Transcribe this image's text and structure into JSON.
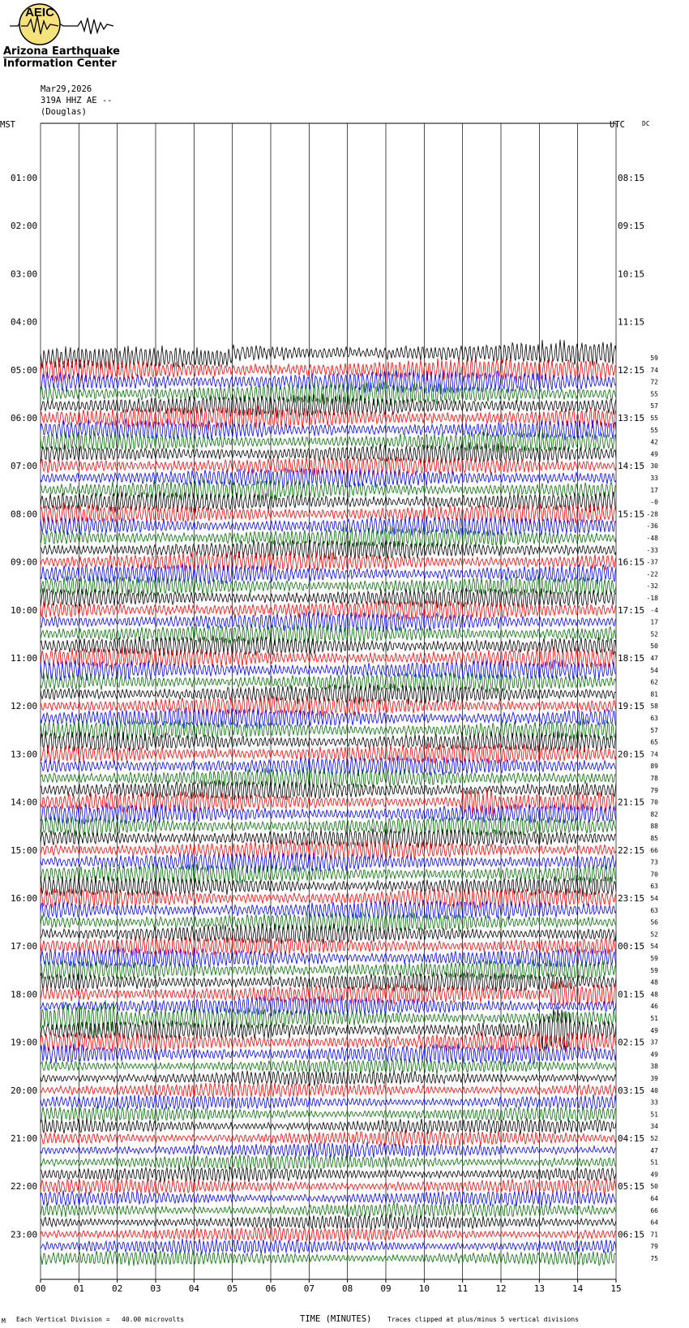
{
  "logo": {
    "badge": "AEIC",
    "line1": "Arizona Earthquake",
    "line2": "Information Center"
  },
  "header": {
    "date": "Mar29,2026",
    "channel": "319A HHZ AE --",
    "site": "(Douglas)"
  },
  "labels": {
    "mst": "MST",
    "utc": "UTC",
    "dc": "DC"
  },
  "footer": {
    "left_mark": "M",
    "vertical_division": "Each Vertical Division =   40.00 microvolts",
    "time_label": "TIME (MINUTES)",
    "clip_note": "Traces clipped at plus/minus 5 vertical divisions"
  },
  "colors": {
    "trace_cycle": [
      "#000000",
      "#ff0000",
      "#0000ff",
      "#007000"
    ],
    "grid": "#000000"
  },
  "chart_data": {
    "type": "line",
    "title": "",
    "xlabel": "TIME (MINUTES)",
    "x_ticks": [
      "00",
      "01",
      "02",
      "03",
      "04",
      "05",
      "06",
      "07",
      "08",
      "09",
      "10",
      "11",
      "12",
      "13",
      "14",
      "15"
    ],
    "left_hour_labels": [
      "01:00",
      "02:00",
      "03:00",
      "04:00",
      "05:00",
      "06:00",
      "07:00",
      "08:00",
      "09:00",
      "10:00",
      "11:00",
      "12:00",
      "13:00",
      "14:00",
      "15:00",
      "16:00",
      "17:00",
      "18:00",
      "19:00",
      "20:00",
      "21:00",
      "22:00",
      "23:00"
    ],
    "right_hour_labels": [
      "08:15",
      "09:15",
      "10:15",
      "11:15",
      "12:15",
      "13:15",
      "14:15",
      "15:15",
      "16:15",
      "17:15",
      "18:15",
      "19:15",
      "20:15",
      "21:15",
      "22:15",
      "23:15",
      "00:15",
      "01:15",
      "02:15",
      "03:15",
      "04:15",
      "05:15",
      "06:15"
    ],
    "dc_offsets": [
      "59",
      "74",
      "72",
      "55",
      "57",
      "55",
      "55",
      "42",
      "49",
      "30",
      "33",
      "17",
      "-0",
      "-28",
      "-36",
      "-48",
      "-33",
      "-37",
      "-22",
      "-32",
      "-18",
      "-4",
      "17",
      "52",
      "50",
      "47",
      "54",
      "62",
      "81",
      "58",
      "63",
      "57",
      "65",
      "74",
      "89",
      "78",
      "79",
      "70",
      "82",
      "88",
      "85",
      "66",
      "73",
      "70",
      "63",
      "54",
      "63",
      "56",
      "52",
      "54",
      "59",
      "59",
      "48",
      "48",
      "46",
      "51",
      "49",
      "37",
      "49",
      "38",
      "39",
      "40",
      "33",
      "51",
      "34",
      "52",
      "47",
      "51",
      "49",
      "50",
      "64",
      "66",
      "64",
      "71",
      "79",
      "75"
    ],
    "first_trace_start_hour": 4.75,
    "trace_span_minutes": 15,
    "blank_until_minute": 5,
    "vertical_division_microvolts": 40.0,
    "clip_divisions": 5,
    "events": [
      {
        "trace_index": 55,
        "start_minute": 0.0,
        "end_minute": 2.0,
        "note": "large burst"
      },
      {
        "trace_index": 53,
        "start_minute": 13.3,
        "end_minute": 15.0,
        "note": "burst"
      },
      {
        "trace_index": 56,
        "start_minute": 13.0,
        "end_minute": 13.8,
        "note": "burst"
      },
      {
        "trace_index": 37,
        "start_minute": 11.0,
        "end_minute": 11.8,
        "note": "burst"
      }
    ]
  }
}
